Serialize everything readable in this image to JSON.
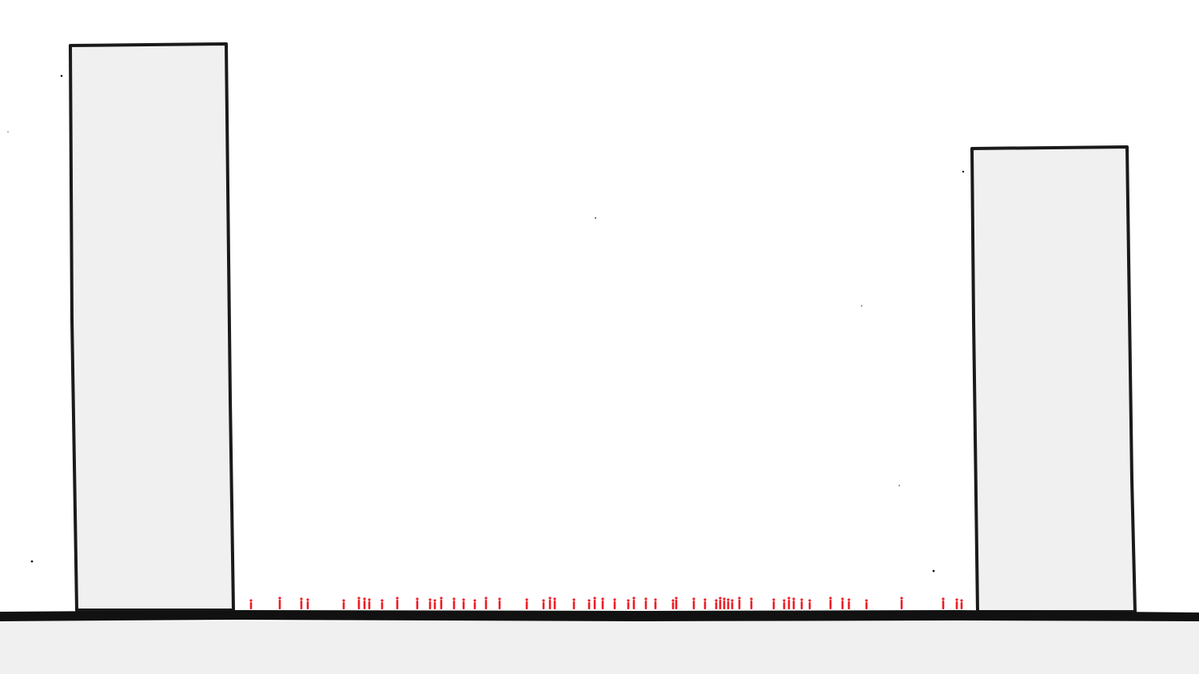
{
  "scene": {
    "description_text": "",
    "colors": {
      "background": "#ffffff",
      "building_fill": "#f0f0f0",
      "outline": "#1a1a1a",
      "ground": "#111111",
      "foreground": "#f0f0f0",
      "people": "#ee1c24"
    },
    "buildings": [
      {
        "name": "tall-building-left"
      },
      {
        "name": "short-building-right"
      }
    ],
    "people_count": 59,
    "icons": [
      "person-icon"
    ]
  }
}
